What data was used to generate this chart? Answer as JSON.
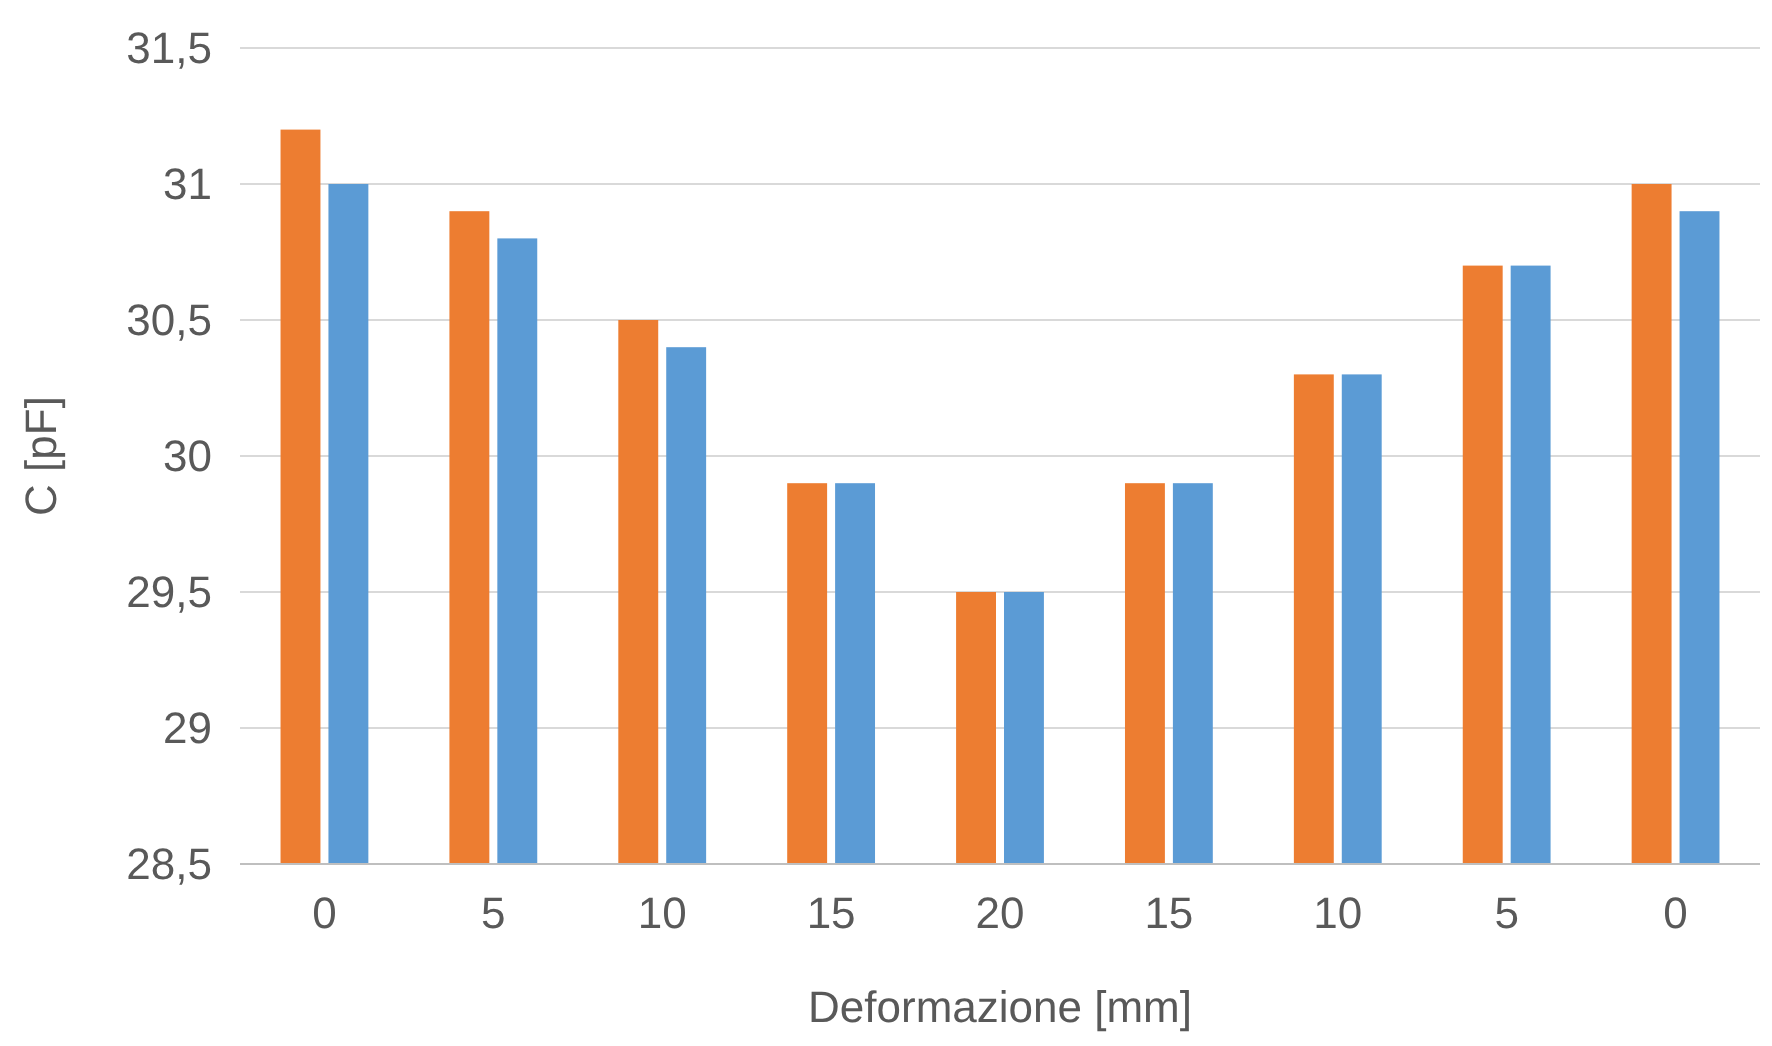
{
  "chart_data": {
    "type": "bar",
    "xlabel": "Deformazione [mm]",
    "ylabel": "C [pF]",
    "categories": [
      "0",
      "5",
      "10",
      "15",
      "20",
      "15",
      "10",
      "5",
      "0"
    ],
    "series": [
      {
        "color": "#ed7d31",
        "values": [
          31.2,
          30.9,
          30.5,
          29.9,
          29.5,
          29.9,
          30.3,
          30.7,
          31.0
        ]
      },
      {
        "color": "#5b9bd5",
        "values": [
          31.0,
          30.8,
          30.4,
          29.9,
          29.5,
          29.9,
          30.3,
          30.7,
          30.9
        ]
      }
    ],
    "ylim": [
      28.5,
      31.5
    ],
    "yticks": [
      {
        "value": 28.5,
        "label": "28,5"
      },
      29,
      {
        "value": 29.5,
        "label": "29,5"
      },
      30,
      {
        "value": 30.5,
        "label": "30,5"
      },
      31,
      {
        "value": 31.5,
        "label": "31,5"
      }
    ],
    "grid": "y"
  }
}
